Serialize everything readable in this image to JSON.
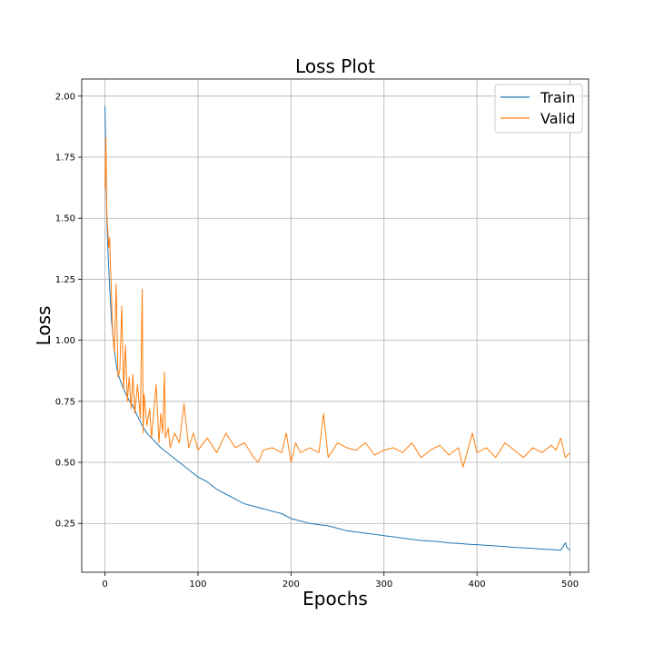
{
  "chart_data": {
    "type": "line",
    "title": "Loss Plot",
    "xlabel": "Epochs",
    "ylabel": "Loss",
    "xlim": [
      -25,
      520
    ],
    "ylim": [
      0.05,
      2.07
    ],
    "xticks": [
      0,
      100,
      200,
      300,
      400,
      500
    ],
    "yticks": [
      0.25,
      0.5,
      0.75,
      1.0,
      1.25,
      1.5,
      1.75,
      2.0
    ],
    "ytick_labels": [
      "0.25",
      "0.50",
      "0.75",
      "1.00",
      "1.25",
      "1.50",
      "1.75",
      "2.00"
    ],
    "grid": true,
    "legend_position": "upper right",
    "series": [
      {
        "name": "Train",
        "color": "#1f77b4",
        "x": [
          0,
          1,
          2,
          3,
          5,
          7,
          10,
          13,
          16,
          20,
          25,
          30,
          35,
          40,
          45,
          50,
          55,
          60,
          70,
          80,
          90,
          100,
          110,
          120,
          130,
          140,
          150,
          160,
          170,
          180,
          190,
          200,
          210,
          220,
          230,
          240,
          250,
          260,
          270,
          280,
          290,
          300,
          310,
          320,
          330,
          340,
          350,
          360,
          370,
          380,
          390,
          400,
          410,
          420,
          430,
          440,
          450,
          460,
          470,
          480,
          490,
          495,
          497,
          500
        ],
        "values": [
          1.96,
          1.72,
          1.5,
          1.38,
          1.22,
          1.08,
          0.96,
          0.88,
          0.84,
          0.8,
          0.76,
          0.73,
          0.69,
          0.65,
          0.62,
          0.6,
          0.58,
          0.56,
          0.53,
          0.5,
          0.47,
          0.44,
          0.42,
          0.39,
          0.37,
          0.35,
          0.33,
          0.32,
          0.31,
          0.3,
          0.29,
          0.27,
          0.26,
          0.25,
          0.245,
          0.24,
          0.23,
          0.22,
          0.215,
          0.21,
          0.205,
          0.2,
          0.195,
          0.19,
          0.185,
          0.18,
          0.178,
          0.175,
          0.17,
          0.168,
          0.165,
          0.163,
          0.16,
          0.158,
          0.155,
          0.152,
          0.15,
          0.148,
          0.145,
          0.143,
          0.14,
          0.17,
          0.15,
          0.14
        ]
      },
      {
        "name": "Valid",
        "color": "#ff7f0e",
        "x": [
          0,
          1,
          2,
          3,
          4,
          5,
          6,
          7,
          8,
          10,
          12,
          14,
          16,
          18,
          20,
          22,
          24,
          26,
          28,
          30,
          32,
          35,
          38,
          40,
          41,
          42,
          45,
          48,
          50,
          55,
          58,
          60,
          62,
          64,
          65,
          68,
          70,
          75,
          80,
          85,
          90,
          95,
          100,
          110,
          120,
          130,
          140,
          150,
          160,
          165,
          170,
          180,
          190,
          195,
          200,
          205,
          210,
          220,
          230,
          235,
          240,
          250,
          260,
          270,
          280,
          290,
          300,
          310,
          320,
          330,
          340,
          350,
          360,
          370,
          380,
          385,
          390,
          395,
          400,
          410,
          420,
          430,
          440,
          450,
          460,
          470,
          480,
          485,
          490,
          495,
          500
        ],
        "values": [
          1.62,
          1.83,
          1.52,
          1.45,
          1.38,
          1.42,
          1.3,
          1.18,
          1.05,
          0.95,
          1.23,
          0.85,
          0.88,
          1.14,
          0.8,
          0.98,
          0.75,
          0.85,
          0.72,
          0.86,
          0.7,
          0.82,
          0.68,
          1.21,
          0.62,
          0.78,
          0.65,
          0.72,
          0.6,
          0.82,
          0.58,
          0.7,
          0.62,
          0.87,
          0.6,
          0.64,
          0.56,
          0.62,
          0.58,
          0.74,
          0.56,
          0.62,
          0.55,
          0.6,
          0.54,
          0.62,
          0.56,
          0.58,
          0.52,
          0.5,
          0.55,
          0.56,
          0.54,
          0.62,
          0.5,
          0.58,
          0.54,
          0.56,
          0.54,
          0.7,
          0.52,
          0.58,
          0.56,
          0.55,
          0.58,
          0.53,
          0.55,
          0.56,
          0.54,
          0.58,
          0.52,
          0.55,
          0.57,
          0.53,
          0.56,
          0.48,
          0.55,
          0.62,
          0.54,
          0.56,
          0.52,
          0.58,
          0.55,
          0.52,
          0.56,
          0.54,
          0.57,
          0.55,
          0.6,
          0.52,
          0.54
        ]
      }
    ]
  }
}
